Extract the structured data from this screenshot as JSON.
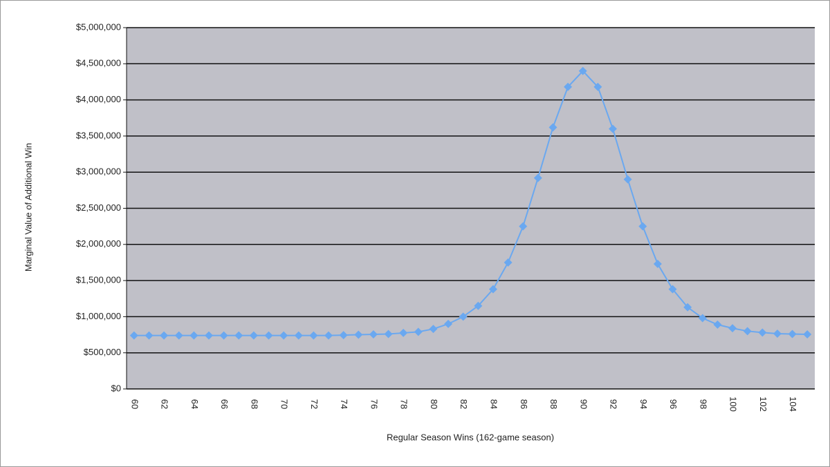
{
  "chart_data": {
    "type": "line",
    "y_axis_title": "Marginal Value of Additional Win",
    "x_axis_title": "Regular Season Wins (162-game season)",
    "categories": [
      "60",
      null,
      "62",
      null,
      "64",
      null,
      "66",
      null,
      "68",
      null,
      "70",
      null,
      "72",
      null,
      "74",
      null,
      "76",
      null,
      "78",
      null,
      "80",
      null,
      "82",
      null,
      "84",
      null,
      "86",
      null,
      "88",
      null,
      "90",
      null,
      "92",
      null,
      "94",
      null,
      "96",
      null,
      "98",
      null,
      "100",
      null,
      "102",
      null,
      "104",
      null
    ],
    "series": [
      {
        "color": "#6aa8f0",
        "values": [
          740000,
          740000,
          740000,
          740000,
          740000,
          740000,
          740000,
          740000,
          740000,
          740000,
          740000,
          740000,
          740000,
          740000,
          745000,
          750000,
          755000,
          760000,
          775000,
          790000,
          830000,
          900000,
          1000000,
          1150000,
          1380000,
          1750000,
          2250000,
          2920000,
          3620000,
          4180000,
          4400000,
          4180000,
          3600000,
          2900000,
          2250000,
          1730000,
          1380000,
          1130000,
          980000,
          890000,
          840000,
          800000,
          780000,
          765000,
          760000,
          755000
        ]
      }
    ],
    "ylim": [
      0,
      5000000
    ],
    "yticks": [
      {
        "value": 0,
        "label": "$0"
      },
      {
        "value": 500000,
        "label": "$500,000"
      },
      {
        "value": 1000000,
        "label": "$1,000,000"
      },
      {
        "value": 1500000,
        "label": "$1,500,000"
      },
      {
        "value": 2000000,
        "label": "$2,000,000"
      },
      {
        "value": 2500000,
        "label": "$2,500,000"
      },
      {
        "value": 3000000,
        "label": "$3,000,000"
      },
      {
        "value": 3500000,
        "label": "$3,500,000"
      },
      {
        "value": 4000000,
        "label": "$4,000,000"
      },
      {
        "value": 4500000,
        "label": "$4,500,000"
      },
      {
        "value": 5000000,
        "label": "$5,000,000"
      }
    ],
    "grid": true,
    "plot_background": "#c0c0c8"
  }
}
